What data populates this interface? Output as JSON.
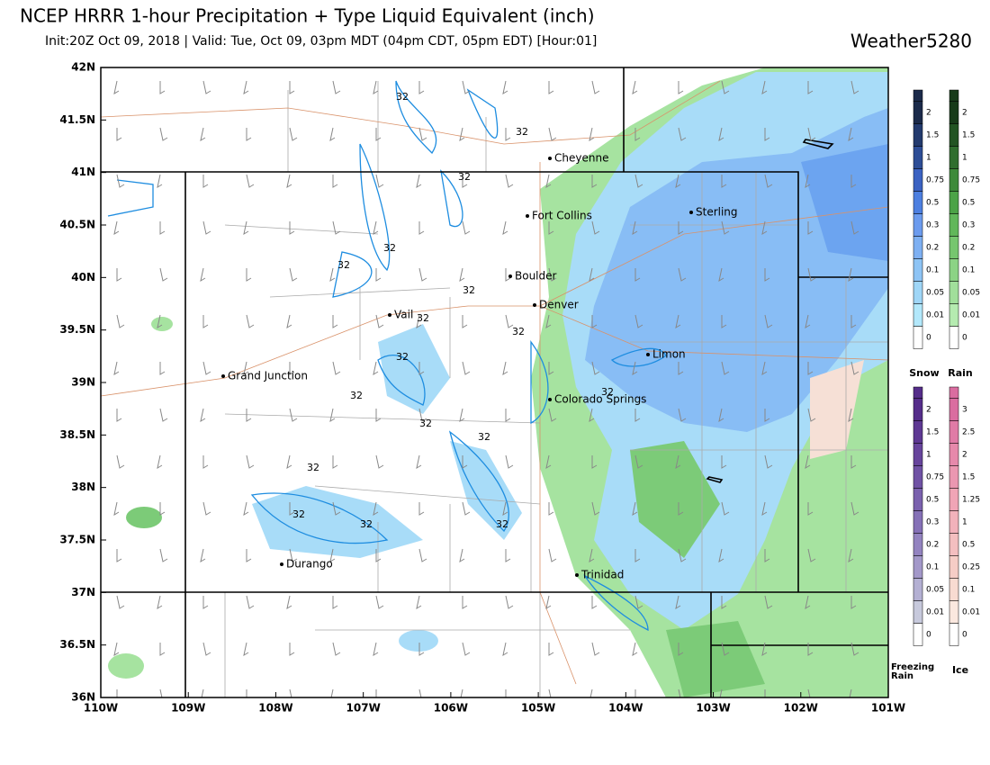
{
  "header": {
    "title": "NCEP HRRR 1-hour Precipitation + Type Liquid Equivalent (inch)",
    "subtitle": "Init:20Z Oct 09, 2018 | Valid: Tue, Oct 09, 03pm MDT (04pm CDT, 05pm EDT) [Hour:01]",
    "brand": "Weather5280"
  },
  "map": {
    "lat_labels": [
      "42N",
      "41.5N",
      "41N",
      "40.5N",
      "40N",
      "39.5N",
      "39N",
      "38.5N",
      "38N",
      "37.5N",
      "37N",
      "36.5N",
      "36N"
    ],
    "lon_labels": [
      "110W",
      "109W",
      "108W",
      "107W",
      "106W",
      "105W",
      "104W",
      "103W",
      "102W",
      "101W"
    ],
    "cities": [
      "Cheyenne",
      "Fort Collins",
      "Sterling",
      "Boulder",
      "Denver",
      "Vail",
      "Limon",
      "Grand Junction",
      "Colorado Springs",
      "Durango",
      "Trinidad"
    ],
    "contour_labels": [
      "32",
      "32",
      "32",
      "32",
      "32",
      "32",
      "32",
      "32",
      "32",
      "32",
      "32",
      "32",
      "32",
      "32",
      "32",
      "32",
      "32"
    ]
  },
  "legend": {
    "snow": {
      "label": "Snow",
      "ticks": [
        "2",
        "1.5",
        "1",
        "0.75",
        "0.5",
        "0.3",
        "0.2",
        "0.1",
        "0.05",
        "0.01",
        "0"
      ]
    },
    "rain": {
      "label": "Rain",
      "ticks": [
        "2",
        "1.5",
        "1",
        "0.75",
        "0.5",
        "0.3",
        "0.2",
        "0.1",
        "0.05",
        "0.01",
        "0"
      ]
    },
    "freezing_rain": {
      "label": "Freezing Rain",
      "ticks": [
        "2",
        "1.5",
        "1",
        "0.75",
        "0.5",
        "0.3",
        "0.2",
        "0.1",
        "0.05",
        "0.01",
        "0"
      ]
    },
    "ice": {
      "label": "Ice",
      "ticks": [
        "3",
        "2.5",
        "2",
        "1.5",
        "1.25",
        "1",
        "0.5",
        "0.25",
        "0.1",
        "0.01",
        "0"
      ]
    }
  }
}
